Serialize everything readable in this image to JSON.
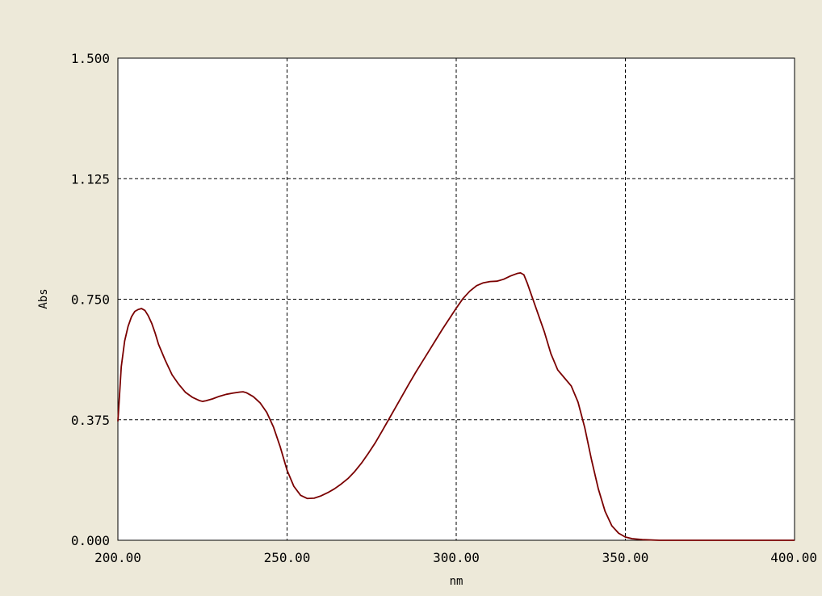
{
  "chart_data": {
    "type": "line",
    "xlabel": "nm",
    "ylabel": "Abs",
    "xlim": [
      200,
      400
    ],
    "ylim": [
      0,
      1.5
    ],
    "x_ticks": [
      "200.00",
      "250.00",
      "300.00",
      "350.00",
      "400.00"
    ],
    "y_ticks": [
      "0.000",
      "0.375",
      "0.750",
      "1.125",
      "1.500"
    ],
    "x_tick_values": [
      200,
      250,
      300,
      350,
      400
    ],
    "y_tick_values": [
      0,
      0.375,
      0.75,
      1.125,
      1.5
    ],
    "grid": true,
    "colors": {
      "line": "#7a0000",
      "grid": "#000000",
      "background": "#ede9d9",
      "plot": "#ffffff"
    },
    "series": [
      {
        "points": [
          [
            200,
            0.37
          ],
          [
            201,
            0.54
          ],
          [
            202,
            0.62
          ],
          [
            203,
            0.665
          ],
          [
            204,
            0.695
          ],
          [
            205,
            0.712
          ],
          [
            206,
            0.718
          ],
          [
            207,
            0.721
          ],
          [
            208,
            0.715
          ],
          [
            209,
            0.698
          ],
          [
            210,
            0.675
          ],
          [
            211,
            0.645
          ],
          [
            212,
            0.61
          ],
          [
            214,
            0.56
          ],
          [
            216,
            0.515
          ],
          [
            218,
            0.485
          ],
          [
            220,
            0.46
          ],
          [
            222,
            0.445
          ],
          [
            224,
            0.435
          ],
          [
            225,
            0.432
          ],
          [
            226,
            0.434
          ],
          [
            228,
            0.44
          ],
          [
            230,
            0.448
          ],
          [
            232,
            0.454
          ],
          [
            234,
            0.458
          ],
          [
            236,
            0.461
          ],
          [
            237,
            0.462
          ],
          [
            238,
            0.459
          ],
          [
            240,
            0.447
          ],
          [
            242,
            0.428
          ],
          [
            244,
            0.398
          ],
          [
            246,
            0.352
          ],
          [
            248,
            0.29
          ],
          [
            250,
            0.218
          ],
          [
            252,
            0.168
          ],
          [
            254,
            0.14
          ],
          [
            256,
            0.13
          ],
          [
            258,
            0.131
          ],
          [
            260,
            0.138
          ],
          [
            262,
            0.148
          ],
          [
            264,
            0.16
          ],
          [
            266,
            0.175
          ],
          [
            268,
            0.192
          ],
          [
            270,
            0.214
          ],
          [
            272,
            0.24
          ],
          [
            274,
            0.27
          ],
          [
            276,
            0.302
          ],
          [
            278,
            0.338
          ],
          [
            280,
            0.375
          ],
          [
            282,
            0.412
          ],
          [
            284,
            0.449
          ],
          [
            286,
            0.486
          ],
          [
            288,
            0.522
          ],
          [
            290,
            0.556
          ],
          [
            292,
            0.59
          ],
          [
            294,
            0.624
          ],
          [
            296,
            0.658
          ],
          [
            298,
            0.69
          ],
          [
            300,
            0.722
          ],
          [
            302,
            0.752
          ],
          [
            304,
            0.775
          ],
          [
            306,
            0.792
          ],
          [
            308,
            0.801
          ],
          [
            310,
            0.805
          ],
          [
            312,
            0.806
          ],
          [
            314,
            0.812
          ],
          [
            316,
            0.822
          ],
          [
            318,
            0.83
          ],
          [
            319,
            0.832
          ],
          [
            320,
            0.826
          ],
          [
            321,
            0.8
          ],
          [
            322,
            0.77
          ],
          [
            324,
            0.71
          ],
          [
            326,
            0.65
          ],
          [
            328,
            0.58
          ],
          [
            330,
            0.53
          ],
          [
            332,
            0.505
          ],
          [
            334,
            0.48
          ],
          [
            336,
            0.43
          ],
          [
            338,
            0.35
          ],
          [
            340,
            0.25
          ],
          [
            342,
            0.16
          ],
          [
            344,
            0.09
          ],
          [
            346,
            0.045
          ],
          [
            348,
            0.022
          ],
          [
            350,
            0.01
          ],
          [
            352,
            0.005
          ],
          [
            355,
            0.002
          ],
          [
            360,
            0.0
          ],
          [
            380,
            0.0
          ],
          [
            400,
            0.0
          ]
        ]
      }
    ]
  }
}
